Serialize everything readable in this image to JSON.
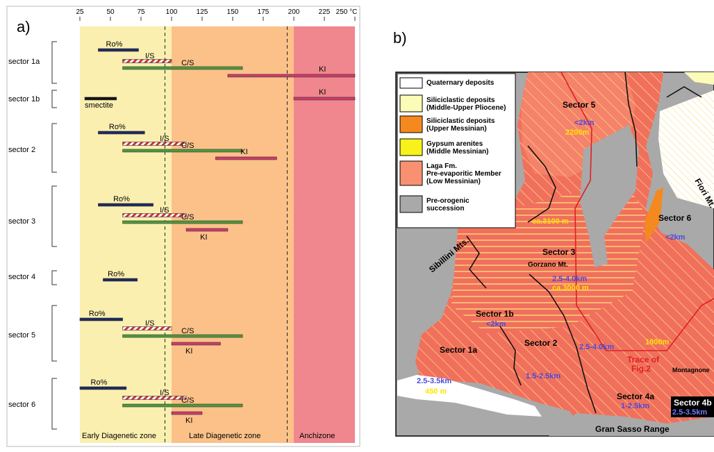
{
  "panel_a": {
    "label": "a)",
    "axis_ticks": [
      "25",
      "50",
      "75",
      "100",
      "125",
      "150",
      "175",
      "200",
      "225",
      "250 °C"
    ],
    "sectors": [
      "sector 1a",
      "sector 1b",
      "sector 2",
      "sector 3",
      "sector 4",
      "sector 5",
      "sector 6"
    ],
    "zones": [
      "Early Diagenetic zone",
      "Late Diagenetic zone",
      "Anchizone"
    ],
    "bar_labels": {
      "ro": "Ro%",
      "is": "I/S",
      "cs": "C/S",
      "ki": "KI",
      "smectite": "smectite"
    },
    "colors": {
      "early_zone": "#fbefb0",
      "late_zone": "#fbc189",
      "anchizone": "#f0878e",
      "ro_bar": "#1f2a60",
      "cs_bar": "#4e9a3a",
      "ki_bar": "#d23a6c",
      "is_bar": "#c8303a"
    },
    "chart_data": {
      "type": "range-bar",
      "x_unit": "°C",
      "xlim": [
        25,
        250
      ],
      "zones": [
        {
          "name": "Early Diagenetic zone",
          "from": 25,
          "to": 100
        },
        {
          "name": "Late Diagenetic zone",
          "from": 100,
          "to": 200
        },
        {
          "name": "Anchizone",
          "from": 200,
          "to": 250
        }
      ],
      "sectors": [
        {
          "name": "sector 1a",
          "bars": [
            {
              "label": "Ro%",
              "from": 40,
              "to": 73
            },
            {
              "label": "I/S",
              "from": 60,
              "to": 100
            },
            {
              "label": "C/S",
              "from": 60,
              "to": 158
            },
            {
              "label": "KI",
              "from": 146,
              "to": 250
            }
          ]
        },
        {
          "name": "sector 1b",
          "bars": [
            {
              "label": "smectite",
              "from": 29,
              "to": 55
            },
            {
              "label": "KI",
              "from": 200,
              "to": 250
            }
          ]
        },
        {
          "name": "sector 2",
          "bars": [
            {
              "label": "Ro%",
              "from": 40,
              "to": 78
            },
            {
              "label": "I/S",
              "from": 60,
              "to": 112
            },
            {
              "label": "C/S",
              "from": 60,
              "to": 158
            },
            {
              "label": "KI",
              "from": 136,
              "to": 186
            }
          ]
        },
        {
          "name": "sector 3",
          "bars": [
            {
              "label": "Ro%",
              "from": 40,
              "to": 85
            },
            {
              "label": "I/S",
              "from": 60,
              "to": 112
            },
            {
              "label": "C/S",
              "from": 60,
              "to": 158
            },
            {
              "label": "KI",
              "from": 112,
              "to": 146
            }
          ]
        },
        {
          "name": "sector 4",
          "bars": [
            {
              "label": "Ro%",
              "from": 44,
              "to": 72
            }
          ]
        },
        {
          "name": "sector 5",
          "bars": [
            {
              "label": "Ro%",
              "from": 25,
              "to": 60
            },
            {
              "label": "I/S",
              "from": 60,
              "to": 100
            },
            {
              "label": "C/S",
              "from": 60,
              "to": 158
            },
            {
              "label": "KI",
              "from": 100,
              "to": 140
            }
          ]
        },
        {
          "name": "sector 6",
          "bars": [
            {
              "label": "Ro%",
              "from": 25,
              "to": 63
            },
            {
              "label": "I/S",
              "from": 60,
              "to": 112
            },
            {
              "label": "C/S",
              "from": 60,
              "to": 158
            },
            {
              "label": "KI",
              "from": 100,
              "to": 125
            }
          ]
        }
      ]
    }
  },
  "panel_b": {
    "label": "b)",
    "legend": [
      {
        "text": "Quaternary deposits",
        "color": "#ffffff"
      },
      {
        "text": "Siliciclastic deposits\n(Middle-Upper Pliocene)",
        "color": "#fdfbb8"
      },
      {
        "text": "Siliciclastic deposits\n(Upper Messinian)",
        "color": "#f4891f"
      },
      {
        "text": "Gypsum arenites\n(Middle Messinian)",
        "color": "#f7f21a"
      },
      {
        "text": "Laga Fm.\nPre-evaporitic Member\n(Low Messinian)",
        "color": "#f79171"
      },
      {
        "text": "Pre-orogenic\nsuccession",
        "color": "#a9a9a9"
      }
    ],
    "map_labels": {
      "sector5": "Sector 5",
      "s5_depth": "<2km",
      "s5_thick": "2200m",
      "s5_thick2": "ca.3100 m",
      "fiori": "Fiori Mt.",
      "sector6": "Sector 6",
      "s6_depth": "<2km",
      "sibillini": "Sibillini Mts.",
      "sector3": "Sector 3",
      "gorzano": "Gorzano Mt.",
      "s3_depth": "2.5-4.0km",
      "s3_thick": "ca.3000 m",
      "sector1b": "Sector 1b",
      "s1b_depth": "<2km",
      "sector2": "Sector 2",
      "s2_depth": "2.5-4.0km",
      "s2_thick": "1800m",
      "sector1a": "Sector 1a",
      "s1a_depth": "2.5-3.5km",
      "s1a_thick": "450 m",
      "s2b_depth": "1.5-2.5km",
      "trace": "Trace of\nFig.2",
      "montagnone": "Montagnone",
      "sector4a": "Sector 4a",
      "s4a_depth": "1-2.5km",
      "sector4b": "Sector 4b",
      "s4b_depth": "2.5-3.5km",
      "gran_sasso": "Gran Sasso Range"
    },
    "colors": {
      "laga": "#f0705d",
      "laga_light": "#f79171",
      "pre_orogenic": "#a9a9a9",
      "hatch": "#ffe27a",
      "depth_text": "#4a4adc",
      "thick_text": "#ffe400",
      "trace": "#e01e26"
    }
  }
}
